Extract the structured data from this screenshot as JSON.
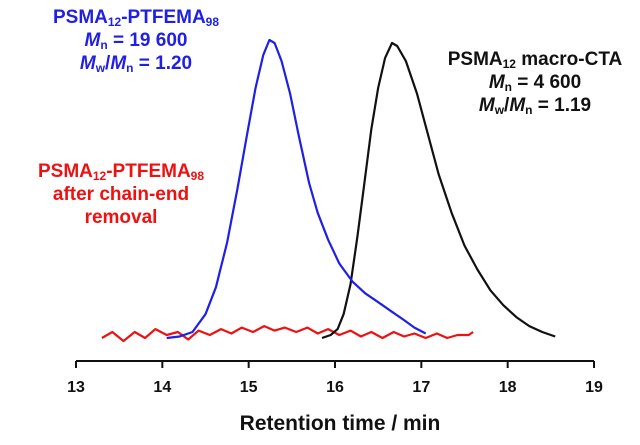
{
  "chart_data": {
    "type": "line",
    "xlabel": "Retention time / min",
    "ylabel": "",
    "xlim": [
      13,
      19
    ],
    "xticks": [
      "13",
      "14",
      "15",
      "16",
      "17",
      "18",
      "19"
    ],
    "grid": false,
    "series": [
      {
        "name": "PSMA12-PTFEMA98",
        "color": "#1f1fe6",
        "points": [
          [
            14.05,
            0.0
          ],
          [
            14.2,
            0.005
          ],
          [
            14.35,
            0.02
          ],
          [
            14.5,
            0.08
          ],
          [
            14.62,
            0.17
          ],
          [
            14.75,
            0.32
          ],
          [
            14.87,
            0.5
          ],
          [
            14.98,
            0.68
          ],
          [
            15.08,
            0.84
          ],
          [
            15.17,
            0.95
          ],
          [
            15.24,
            1.0
          ],
          [
            15.3,
            0.99
          ],
          [
            15.38,
            0.93
          ],
          [
            15.48,
            0.82
          ],
          [
            15.58,
            0.68
          ],
          [
            15.7,
            0.52
          ],
          [
            15.8,
            0.42
          ],
          [
            15.92,
            0.33
          ],
          [
            16.05,
            0.25
          ],
          [
            16.2,
            0.19
          ],
          [
            16.35,
            0.15
          ],
          [
            16.5,
            0.12
          ],
          [
            16.65,
            0.09
          ],
          [
            16.8,
            0.06
          ],
          [
            16.92,
            0.035
          ],
          [
            17.05,
            0.015
          ]
        ]
      },
      {
        "name": "PSMA12 macro-CTA",
        "color": "#111111",
        "points": [
          [
            15.85,
            0.0
          ],
          [
            15.95,
            0.01
          ],
          [
            16.03,
            0.03
          ],
          [
            16.1,
            0.08
          ],
          [
            16.18,
            0.18
          ],
          [
            16.26,
            0.34
          ],
          [
            16.34,
            0.52
          ],
          [
            16.42,
            0.7
          ],
          [
            16.5,
            0.84
          ],
          [
            16.58,
            0.94
          ],
          [
            16.66,
            0.99
          ],
          [
            16.72,
            0.98
          ],
          [
            16.82,
            0.93
          ],
          [
            16.95,
            0.82
          ],
          [
            17.08,
            0.68
          ],
          [
            17.2,
            0.55
          ],
          [
            17.35,
            0.42
          ],
          [
            17.5,
            0.31
          ],
          [
            17.65,
            0.23
          ],
          [
            17.8,
            0.16
          ],
          [
            17.95,
            0.11
          ],
          [
            18.1,
            0.07
          ],
          [
            18.25,
            0.04
          ],
          [
            18.4,
            0.02
          ],
          [
            18.55,
            0.005
          ]
        ]
      },
      {
        "name": "PSMA12-PTFEMA98 after chain-end removal",
        "color": "#ee1111",
        "points": [
          [
            13.3,
            0.0
          ],
          [
            13.42,
            0.02
          ],
          [
            13.55,
            -0.01
          ],
          [
            13.68,
            0.02
          ],
          [
            13.8,
            0.0
          ],
          [
            13.92,
            0.03
          ],
          [
            14.05,
            0.01
          ],
          [
            14.18,
            0.02
          ],
          [
            14.3,
            -0.005
          ],
          [
            14.42,
            0.025
          ],
          [
            14.55,
            0.01
          ],
          [
            14.68,
            0.03
          ],
          [
            14.8,
            0.015
          ],
          [
            14.92,
            0.035
          ],
          [
            15.05,
            0.02
          ],
          [
            15.18,
            0.04
          ],
          [
            15.3,
            0.025
          ],
          [
            15.42,
            0.035
          ],
          [
            15.55,
            0.02
          ],
          [
            15.68,
            0.035
          ],
          [
            15.8,
            0.015
          ],
          [
            15.92,
            0.03
          ],
          [
            16.05,
            0.01
          ],
          [
            16.18,
            0.025
          ],
          [
            16.3,
            0.005
          ],
          [
            16.42,
            0.02
          ],
          [
            16.55,
            0.0
          ],
          [
            16.68,
            0.02
          ],
          [
            16.8,
            0.005
          ],
          [
            16.92,
            0.015
          ],
          [
            17.05,
            0.0
          ],
          [
            17.18,
            0.015
          ],
          [
            17.3,
            0.0
          ],
          [
            17.42,
            0.01
          ],
          [
            17.55,
            0.01
          ],
          [
            17.6,
            0.02
          ]
        ]
      }
    ]
  },
  "labels": {
    "blue": {
      "line1_base": "PSMA",
      "line1_sub1": "12",
      "line1_mid": "-PTFEMA",
      "line1_sub2": "98",
      "line2_M": "M",
      "line2_sub": "n",
      "line2_val": " = 19 600",
      "line3_M1": "M",
      "line3_sub1": "w",
      "line3_slash": "/",
      "line3_M2": "M",
      "line3_sub2": "n",
      "line3_val": " = 1.20"
    },
    "black": {
      "line1_base": "PSMA",
      "line1_sub": "12",
      "line1_rest": " macro-CTA",
      "line2_M": "M",
      "line2_sub": "n",
      "line2_val": " = 4 600",
      "line3_M1": "M",
      "line3_sub1": "w",
      "line3_slash": "/",
      "line3_M2": "M",
      "line3_sub2": "n",
      "line3_val": " = 1.19"
    },
    "red": {
      "line1_base": "PSMA",
      "line1_sub1": "12",
      "line1_mid": "-PTFEMA",
      "line1_sub2": "98",
      "line2": "after chain-end",
      "line3": "removal"
    }
  }
}
